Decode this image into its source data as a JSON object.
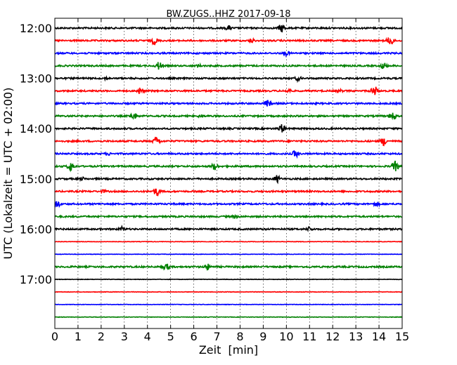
{
  "chart_data": {
    "type": "line",
    "title": "BW.ZUGS..HHZ 2017-09-18",
    "xlabel": "Zeit  [min]",
    "ylabel": "UTC (Lokalzeit = UTC + 02:00)",
    "xlim": [
      0,
      15
    ],
    "x_ticks": [
      "0",
      "1",
      "2",
      "3",
      "4",
      "5",
      "6",
      "7",
      "8",
      "9",
      "10",
      "11",
      "12",
      "13",
      "14",
      "15"
    ],
    "y_tick_labels": [
      "12:00",
      "13:00",
      "14:00",
      "15:00",
      "16:00",
      "17:00"
    ],
    "grid": "vertical dotted at each minute",
    "colors": [
      "#000000",
      "#ff0000",
      "#0000ff",
      "#008000"
    ],
    "traces": [
      {
        "start": "12:00",
        "color": "#000000",
        "spikes": [
          [
            7.5,
            4
          ],
          [
            9.8,
            7
          ]
        ]
      },
      {
        "start": "12:15",
        "color": "#ff0000",
        "spikes": [
          [
            4.3,
            6
          ],
          [
            8.5,
            4
          ],
          [
            14.5,
            8
          ]
        ]
      },
      {
        "start": "12:30",
        "color": "#0000ff",
        "spikes": [
          [
            10.0,
            4
          ]
        ]
      },
      {
        "start": "12:45",
        "color": "#008000",
        "spikes": [
          [
            4.5,
            7
          ],
          [
            6.2,
            3
          ],
          [
            14.2,
            6
          ]
        ]
      },
      {
        "start": "13:00",
        "color": "#000000",
        "spikes": [
          [
            2.2,
            3
          ],
          [
            10.5,
            4
          ]
        ]
      },
      {
        "start": "13:15",
        "color": "#ff0000",
        "spikes": [
          [
            3.7,
            6
          ],
          [
            10.1,
            4
          ],
          [
            12.3,
            3
          ],
          [
            13.8,
            8
          ]
        ]
      },
      {
        "start": "13:30",
        "color": "#0000ff",
        "spikes": [
          [
            9.2,
            6
          ]
        ]
      },
      {
        "start": "13:45",
        "color": "#008000",
        "spikes": [
          [
            3.4,
            6
          ],
          [
            6.3,
            3
          ],
          [
            14.6,
            7
          ]
        ]
      },
      {
        "start": "14:00",
        "color": "#000000",
        "spikes": [
          [
            9.8,
            7
          ]
        ]
      },
      {
        "start": "14:15",
        "color": "#ff0000",
        "spikes": [
          [
            4.4,
            7
          ],
          [
            14.2,
            7
          ]
        ]
      },
      {
        "start": "14:30",
        "color": "#0000ff",
        "spikes": [
          [
            2.3,
            3
          ],
          [
            10.4,
            6
          ]
        ]
      },
      {
        "start": "14:45",
        "color": "#008000",
        "spikes": [
          [
            0.7,
            8
          ],
          [
            6.9,
            6
          ],
          [
            14.7,
            8
          ]
        ]
      },
      {
        "start": "15:00",
        "color": "#000000",
        "spikes": [
          [
            1.2,
            3
          ],
          [
            9.6,
            6
          ]
        ]
      },
      {
        "start": "15:15",
        "color": "#ff0000",
        "spikes": [
          [
            2.1,
            3
          ],
          [
            4.4,
            7
          ]
        ]
      },
      {
        "start": "15:30",
        "color": "#0000ff",
        "spikes": [
          [
            0.1,
            6
          ],
          [
            13.9,
            4
          ]
        ]
      },
      {
        "start": "15:45",
        "color": "#008000",
        "spikes": [
          [
            7.8,
            3
          ]
        ]
      },
      {
        "start": "16:00",
        "color": "#000000",
        "spikes": [
          [
            2.9,
            4
          ],
          [
            11.0,
            4
          ]
        ]
      },
      {
        "start": "16:15",
        "color": "#ff0000",
        "spikes": []
      },
      {
        "start": "16:30",
        "color": "#0000ff",
        "spikes": []
      },
      {
        "start": "16:45",
        "color": "#008000",
        "spikes": [
          [
            4.8,
            6
          ],
          [
            6.6,
            5
          ]
        ]
      },
      {
        "start": "17:00",
        "color": "#000000",
        "spikes": []
      },
      {
        "start": "17:15",
        "color": "#ff0000",
        "spikes": []
      },
      {
        "start": "17:30",
        "color": "#0000ff",
        "spikes": []
      },
      {
        "start": "17:45",
        "color": "#008000",
        "spikes": []
      }
    ]
  }
}
